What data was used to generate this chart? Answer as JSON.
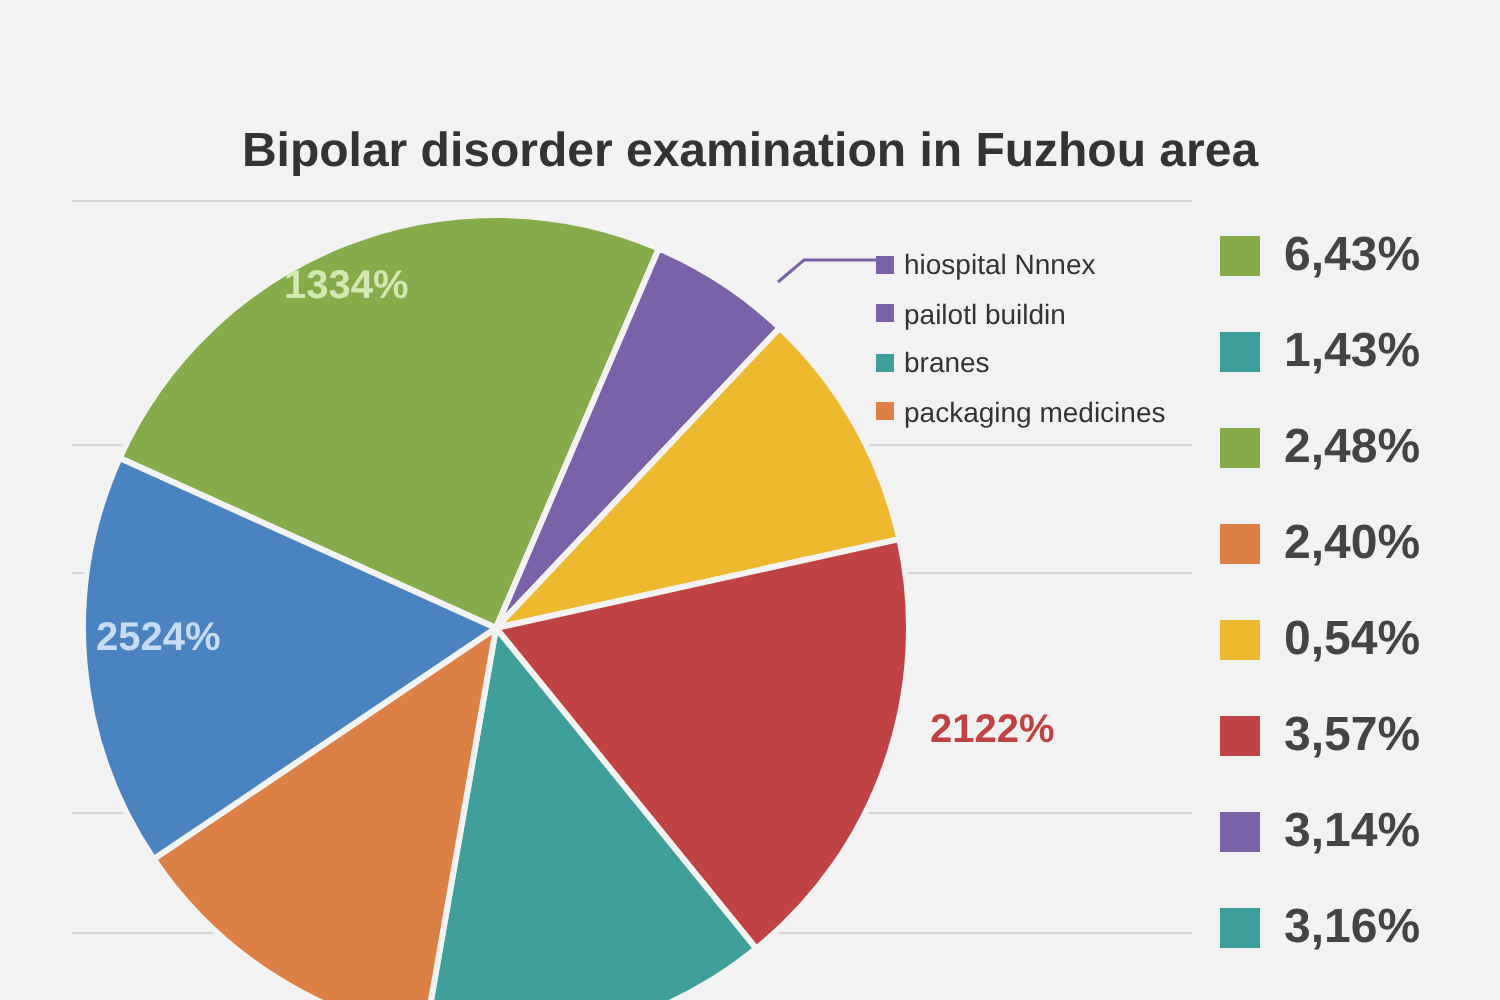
{
  "chart_data": {
    "type": "pie",
    "title": "Bipolar disorder examination in Fuzhou area",
    "categories": [
      null,
      "hiospital Nnnex",
      null,
      null,
      "branes",
      "packaging medicines",
      null
    ],
    "values": [
      24.7,
      5.6,
      9.5,
      17.6,
      13.6,
      12.8,
      16.2
    ],
    "colors": [
      "#86ab4b",
      "#7a62a8",
      "#edb92f",
      "#c04242",
      "#3f9f9a",
      "#dc8045",
      "#4b82c0"
    ],
    "legend": "top right",
    "annotations": [
      "1334%",
      "2524%",
      "2122%",
      "pailotl buildin",
      "6,43%",
      "1,43%",
      "2,48%",
      "2,40%",
      "0,54%",
      "3,57%",
      "3,14%",
      "3,16%"
    ]
  }
}
